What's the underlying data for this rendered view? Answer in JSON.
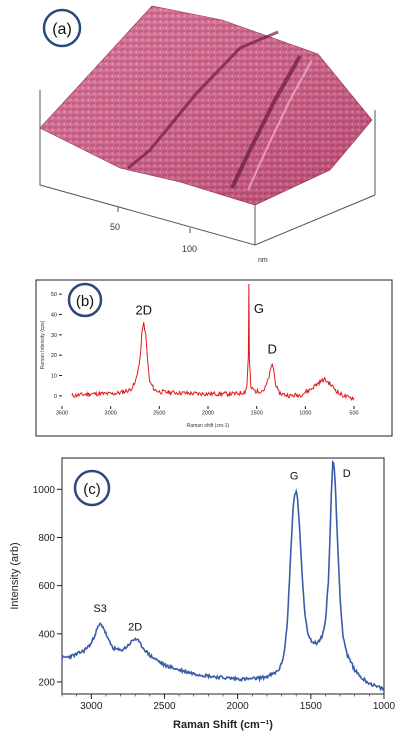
{
  "panels": {
    "a": {
      "label": "(a)",
      "axis_ticks": [
        "50",
        "100"
      ],
      "axis_unit": "nm",
      "surface_color": "#c8487a"
    },
    "b": {
      "label": "(b)",
      "peak_labels": [
        "2D",
        "G",
        "D"
      ],
      "line_color": "#e0191b"
    },
    "c": {
      "label": "(c)",
      "peak_labels": [
        "S3",
        "2D",
        "G",
        "D"
      ],
      "line_color": "#3a5ca8"
    }
  },
  "chart_data": [
    {
      "type": "line",
      "xlabel": "Raman shift (cm-1)",
      "ylabel": "Raman Intensity (cps)",
      "xlim": [
        3500,
        500
      ],
      "ylim": [
        -5,
        55
      ],
      "x_ticks": [
        3500,
        3000,
        2500,
        2000,
        1500,
        1000,
        500
      ],
      "y_ticks": [
        0,
        10,
        20,
        30,
        40,
        50
      ],
      "series": [
        {
          "x": [
            3400,
            3200,
            3000,
            2900,
            2800,
            2750,
            2700,
            2680,
            2660,
            2640,
            2620,
            2600,
            2550,
            2500,
            2300,
            2100,
            1900,
            1700,
            1620,
            1600,
            1585,
            1580,
            1575,
            1560,
            1500,
            1420,
            1380,
            1350,
            1340,
            1320,
            1300,
            1280,
            1250,
            1150,
            1050,
            950,
            850,
            800,
            750,
            650,
            550,
            500
          ],
          "y": [
            0,
            1,
            1,
            1.5,
            3,
            6,
            17,
            30,
            36,
            30,
            17,
            7,
            3,
            2,
            1.5,
            1,
            1,
            1,
            2,
            5,
            20,
            56,
            18,
            4,
            2,
            3,
            8,
            14,
            16,
            11,
            5,
            2,
            1,
            0,
            0.5,
            3,
            7,
            8,
            6,
            1,
            -1,
            -1
          ]
        }
      ],
      "annotations": [
        {
          "text": "2D",
          "x": 2660,
          "y": 36
        },
        {
          "text": "G",
          "x": 1580,
          "y": 56
        },
        {
          "text": "D",
          "x": 1340,
          "y": 16
        }
      ]
    },
    {
      "type": "line",
      "xlabel": "Raman Shift (cm⁻¹)",
      "ylabel": "Intensity (arb)",
      "xlim": [
        3200,
        1000
      ],
      "ylim": [
        150,
        1130
      ],
      "x_ticks": [
        3000,
        2500,
        2000,
        1500,
        1000
      ],
      "y_ticks": [
        200,
        400,
        600,
        800,
        1000
      ],
      "series": [
        {
          "x": [
            3200,
            3150,
            3100,
            3050,
            3000,
            2980,
            2960,
            2940,
            2920,
            2900,
            2880,
            2850,
            2800,
            2760,
            2720,
            2700,
            2680,
            2650,
            2600,
            2500,
            2400,
            2300,
            2200,
            2100,
            2000,
            1950,
            1900,
            1850,
            1800,
            1750,
            1720,
            1700,
            1680,
            1660,
            1640,
            1620,
            1610,
            1600,
            1590,
            1580,
            1560,
            1540,
            1520,
            1500,
            1480,
            1460,
            1440,
            1420,
            1400,
            1380,
            1370,
            1360,
            1350,
            1340,
            1330,
            1320,
            1300,
            1280,
            1250,
            1200,
            1150,
            1100,
            1050,
            1000
          ],
          "y": [
            300,
            305,
            315,
            330,
            360,
            390,
            420,
            440,
            430,
            400,
            370,
            340,
            330,
            345,
            370,
            380,
            370,
            345,
            310,
            270,
            250,
            235,
            225,
            218,
            213,
            212,
            213,
            216,
            222,
            235,
            250,
            275,
            330,
            450,
            700,
            930,
            980,
            990,
            960,
            870,
            650,
            480,
            405,
            375,
            362,
            362,
            372,
            395,
            450,
            620,
            780,
            980,
            1120,
            1090,
            980,
            820,
            550,
            390,
            310,
            250,
            215,
            195,
            180,
            170
          ]
        }
      ],
      "annotations": [
        {
          "text": "S3",
          "x": 2940,
          "y": 440
        },
        {
          "text": "2D",
          "x": 2700,
          "y": 380
        },
        {
          "text": "G",
          "x": 1600,
          "y": 990
        },
        {
          "text": "D",
          "x": 1350,
          "y": 1120
        }
      ]
    }
  ]
}
